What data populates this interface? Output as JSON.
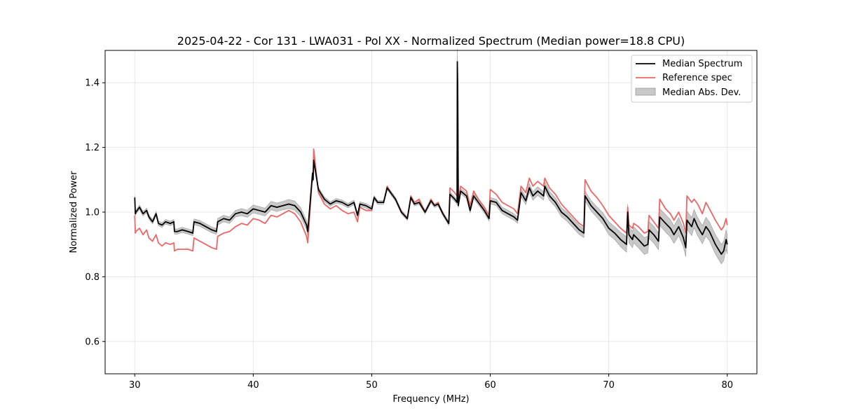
{
  "chart_data": {
    "type": "line",
    "title": "2025-04-22 - Cor 131 - LWA031 - Pol XX - Normalized Spectrum (Median power=18.8 CPU)",
    "xlabel": "Frequency (MHz)",
    "ylabel": "Normalized Power",
    "xlim": [
      27.5,
      82.5
    ],
    "ylim": [
      0.5,
      1.5
    ],
    "xticks": [
      30,
      40,
      50,
      60,
      70,
      80
    ],
    "yticks": [
      0.6,
      0.8,
      1.0,
      1.2,
      1.4
    ],
    "grid": true,
    "legend_position": "top-right",
    "colors": {
      "median": "#000000",
      "reference": "#ee6666",
      "mad_fill": "#c8c8c8",
      "mad_edge": "#9a9a9a"
    },
    "series": [
      {
        "name": "Median Spectrum",
        "x": [
          30,
          30.05,
          30.1,
          30.4,
          30.7,
          31.0,
          31.2,
          31.5,
          31.8,
          32.0,
          32.3,
          32.6,
          33.0,
          33.3,
          33.35,
          33.6,
          34.0,
          34.5,
          34.9,
          35.0,
          35.5,
          36.0,
          36.5,
          36.9,
          37.0,
          37.5,
          38.0,
          38.5,
          39.0,
          39.5,
          40.0,
          40.5,
          41.0,
          41.5,
          42.0,
          42.5,
          43.0,
          43.5,
          44.0,
          44.5,
          44.6,
          45.0,
          45.05,
          45.1,
          45.5,
          46.0,
          46.5,
          47.0,
          47.5,
          48.0,
          48.5,
          48.8,
          49.0,
          49.5,
          50.0,
          50.2,
          50.5,
          51.0,
          51.3,
          51.6,
          52.0,
          52.5,
          53.0,
          53.3,
          53.6,
          54.0,
          54.5,
          55.0,
          55.3,
          55.6,
          56.0,
          56.5,
          56.6,
          57.0,
          57.2,
          57.22,
          57.25,
          57.3,
          57.5,
          58.0,
          58.3,
          58.6,
          59.0,
          59.5,
          59.9,
          60.0,
          60.5,
          61.0,
          61.5,
          62.0,
          62.3,
          62.6,
          63.0,
          63.3,
          63.6,
          64.0,
          64.5,
          64.6,
          65.0,
          65.5,
          66.0,
          66.5,
          67.0,
          67.5,
          67.9,
          68.0,
          68.5,
          69.0,
          69.5,
          70.0,
          70.5,
          71.0,
          71.5,
          71.6,
          71.7,
          72.0,
          72.1,
          72.5,
          73.0,
          73.3,
          73.4,
          73.8,
          74.2,
          74.3,
          74.8,
          75.2,
          75.5,
          75.9,
          76.3,
          76.5,
          76.6,
          77.0,
          77.2,
          77.5,
          77.9,
          78.2,
          78.5,
          79.0,
          79.5,
          79.7,
          79.9,
          80.0
        ],
        "values": [
          1.045,
          0.995,
          1.0,
          1.015,
          0.995,
          1.005,
          0.985,
          0.97,
          0.995,
          0.965,
          0.96,
          0.97,
          0.965,
          0.97,
          0.94,
          0.94,
          0.945,
          0.94,
          0.935,
          0.97,
          0.965,
          0.955,
          0.945,
          0.94,
          0.97,
          0.98,
          0.975,
          0.995,
          1.0,
          0.995,
          1.01,
          1.005,
          1.0,
          1.02,
          1.015,
          1.02,
          1.025,
          1.02,
          1.0,
          0.96,
          0.94,
          1.12,
          1.1,
          1.16,
          1.07,
          1.04,
          1.025,
          1.035,
          1.03,
          1.02,
          1.03,
          0.99,
          1.025,
          1.02,
          1.01,
          1.045,
          1.03,
          1.03,
          1.075,
          1.06,
          1.04,
          1.0,
          0.98,
          1.045,
          1.025,
          1.03,
          1.0,
          1.035,
          1.02,
          1.025,
          0.995,
          0.965,
          1.055,
          1.04,
          1.03,
          1.465,
          1.395,
          1.02,
          1.065,
          1.05,
          1.005,
          1.05,
          1.03,
          1.005,
          0.98,
          1.035,
          1.03,
          1.005,
          0.995,
          0.985,
          0.975,
          1.06,
          1.035,
          1.075,
          1.05,
          1.065,
          1.05,
          1.08,
          1.05,
          1.03,
          1.0,
          0.985,
          0.965,
          0.945,
          0.935,
          1.05,
          1.02,
          1.0,
          0.98,
          0.95,
          0.935,
          0.915,
          0.9,
          1.0,
          0.93,
          0.915,
          0.93,
          0.915,
          0.895,
          0.9,
          0.945,
          0.93,
          0.91,
          0.985,
          0.965,
          0.95,
          0.93,
          0.955,
          0.92,
          0.89,
          0.975,
          0.955,
          0.98,
          0.955,
          0.93,
          0.955,
          0.94,
          0.9,
          0.87,
          0.88,
          0.915,
          0.9
        ]
      },
      {
        "name": "Reference spec",
        "x": [
          30,
          30.05,
          30.1,
          30.4,
          30.7,
          31.0,
          31.2,
          31.5,
          31.8,
          32.0,
          32.3,
          32.6,
          33.0,
          33.3,
          33.35,
          33.6,
          34.0,
          34.5,
          34.9,
          35.0,
          35.5,
          36.0,
          36.5,
          36.9,
          37.0,
          37.5,
          38.0,
          38.5,
          39.0,
          39.5,
          40.0,
          40.5,
          41.0,
          41.5,
          42.0,
          42.5,
          43.0,
          43.5,
          44.0,
          44.5,
          44.6,
          45.0,
          45.05,
          45.1,
          45.5,
          46.0,
          46.5,
          47.0,
          47.5,
          48.0,
          48.5,
          48.8,
          49.0,
          49.5,
          50.0,
          50.2,
          50.5,
          51.0,
          51.3,
          51.6,
          52.0,
          52.5,
          53.0,
          53.3,
          53.6,
          54.0,
          54.5,
          55.0,
          55.3,
          55.6,
          56.0,
          56.5,
          56.6,
          57.0,
          57.2,
          57.22,
          57.25,
          57.3,
          57.5,
          58.0,
          58.3,
          58.6,
          59.0,
          59.5,
          59.9,
          60.0,
          60.5,
          61.0,
          61.5,
          62.0,
          62.3,
          62.6,
          63.0,
          63.3,
          63.6,
          64.0,
          64.5,
          64.6,
          65.0,
          65.5,
          66.0,
          66.5,
          67.0,
          67.5,
          67.9,
          68.0,
          68.5,
          69.0,
          69.5,
          70.0,
          70.5,
          71.0,
          71.5,
          71.6,
          71.7,
          72.0,
          72.1,
          72.5,
          73.0,
          73.3,
          73.4,
          73.8,
          74.2,
          74.3,
          74.8,
          75.2,
          75.5,
          75.9,
          76.3,
          76.5,
          76.6,
          77.0,
          77.2,
          77.5,
          77.9,
          78.2,
          78.5,
          79.0,
          79.5,
          79.7,
          79.9,
          80.0
        ],
        "values": [
          0.99,
          0.935,
          0.94,
          0.95,
          0.93,
          0.945,
          0.92,
          0.91,
          0.93,
          0.905,
          0.895,
          0.905,
          0.9,
          0.905,
          0.88,
          0.885,
          0.885,
          0.885,
          0.88,
          0.92,
          0.91,
          0.9,
          0.89,
          0.885,
          0.925,
          0.935,
          0.94,
          0.955,
          0.965,
          0.96,
          0.98,
          0.975,
          0.965,
          0.99,
          0.985,
          0.995,
          1.005,
          0.995,
          0.97,
          0.925,
          0.905,
          1.115,
          1.1,
          1.195,
          1.06,
          1.025,
          1.01,
          1.02,
          1.005,
          0.995,
          1.0,
          0.97,
          1.015,
          1.005,
          1.005,
          1.045,
          1.03,
          1.03,
          1.08,
          1.06,
          1.04,
          1.0,
          0.98,
          1.05,
          1.03,
          1.04,
          1.0,
          1.04,
          1.02,
          1.03,
          0.995,
          0.965,
          1.075,
          1.06,
          1.05,
          1.39,
          1.38,
          1.035,
          1.08,
          1.065,
          1.02,
          1.065,
          1.04,
          1.015,
          0.99,
          1.07,
          1.055,
          1.03,
          1.02,
          1.01,
          0.995,
          1.08,
          1.06,
          1.105,
          1.08,
          1.095,
          1.08,
          1.105,
          1.075,
          1.055,
          1.025,
          1.005,
          0.985,
          0.965,
          0.955,
          1.1,
          1.065,
          1.045,
          1.02,
          0.99,
          0.97,
          0.95,
          0.935,
          1.015,
          0.96,
          0.95,
          0.965,
          0.955,
          0.935,
          0.94,
          0.99,
          0.97,
          0.95,
          1.04,
          1.01,
          0.995,
          0.975,
          1.0,
          0.965,
          0.935,
          1.05,
          1.03,
          1.04,
          1.025,
          0.995,
          1.03,
          1.01,
          0.975,
          0.945,
          0.955,
          0.98,
          0.96
        ]
      }
    ],
    "band": {
      "name": "Median Abs. Dev.",
      "half_widths": [
        0.006,
        0.006,
        0.006,
        0.007,
        0.007,
        0.007,
        0.007,
        0.007,
        0.007,
        0.007,
        0.007,
        0.007,
        0.007,
        0.007,
        0.008,
        0.008,
        0.008,
        0.008,
        0.008,
        0.009,
        0.009,
        0.009,
        0.009,
        0.009,
        0.01,
        0.01,
        0.01,
        0.01,
        0.011,
        0.011,
        0.012,
        0.012,
        0.012,
        0.013,
        0.013,
        0.013,
        0.014,
        0.014,
        0.014,
        0.014,
        0.014,
        0.008,
        0.008,
        0.008,
        0.007,
        0.007,
        0.007,
        0.007,
        0.007,
        0.007,
        0.007,
        0.007,
        0.007,
        0.007,
        0.007,
        0.006,
        0.006,
        0.006,
        0.006,
        0.006,
        0.006,
        0.006,
        0.006,
        0.006,
        0.006,
        0.006,
        0.006,
        0.006,
        0.006,
        0.006,
        0.006,
        0.006,
        0.007,
        0.007,
        0.007,
        0.04,
        0.03,
        0.007,
        0.008,
        0.008,
        0.008,
        0.008,
        0.008,
        0.008,
        0.008,
        0.01,
        0.01,
        0.01,
        0.01,
        0.01,
        0.01,
        0.012,
        0.012,
        0.013,
        0.013,
        0.013,
        0.013,
        0.014,
        0.014,
        0.014,
        0.014,
        0.014,
        0.014,
        0.014,
        0.014,
        0.015,
        0.016,
        0.016,
        0.018,
        0.02,
        0.02,
        0.022,
        0.024,
        0.025,
        0.025,
        0.025,
        0.025,
        0.025,
        0.026,
        0.026,
        0.026,
        0.026,
        0.026,
        0.026,
        0.027,
        0.027,
        0.027,
        0.028,
        0.028,
        0.028,
        0.028,
        0.028,
        0.028,
        0.028,
        0.028,
        0.029,
        0.029,
        0.03,
        0.03,
        0.03,
        0.03,
        0.03
      ]
    }
  }
}
